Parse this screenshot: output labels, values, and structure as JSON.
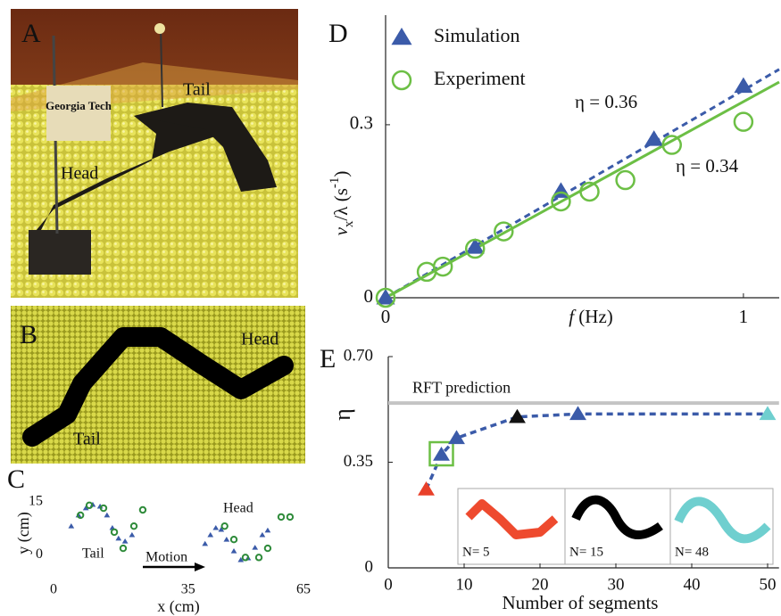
{
  "panels": {
    "A": {
      "label": "A",
      "texts": [
        "Georgia Tech",
        "Tail",
        "Head"
      ]
    },
    "B": {
      "label": "B",
      "texts": [
        "Head",
        "Tail"
      ]
    },
    "C": {
      "label": "C"
    },
    "D": {
      "label": "D"
    },
    "E": {
      "label": "E",
      "insets": [
        "N= 5",
        "N= 15",
        "N= 48"
      ]
    }
  },
  "chart_data": [
    {
      "type": "scatter",
      "xlabel": "x (cm)",
      "ylabel": "y (cm)",
      "xlim": [
        0,
        65
      ],
      "ylim": [
        -4,
        17
      ],
      "xticks": [
        0,
        35,
        65
      ],
      "yticks": [
        0,
        15
      ],
      "axes": false,
      "annotations": [
        "Tail",
        "Head",
        "Motion"
      ],
      "series": [
        {
          "marker": "triangle",
          "color": "#3b5ba9",
          "x": [
            4.6,
            6.5,
            8.4,
            10.2,
            12.1,
            13.9,
            15.3,
            16.9,
            18.6,
            20.4,
            39.4,
            40.8,
            42.2,
            43.6,
            45.0,
            46.9,
            48.7,
            50.6,
            52.4,
            54.3,
            55.7
          ],
          "values": [
            8.1,
            11.2,
            13.2,
            14.2,
            13.7,
            11.2,
            7.6,
            4.6,
            3.8,
            5.6,
            3.1,
            5.6,
            7.6,
            7.1,
            4.3,
            1.0,
            -1.5,
            -1.0,
            2.0,
            5.6,
            6.9
          ]
        },
        {
          "marker": "circle",
          "color": "#2e8b3a",
          "x": [
            7.0,
            9.3,
            13.0,
            15.8,
            18.1,
            20.9,
            23.2,
            44.5,
            46.9,
            49.9,
            53.4,
            55.7,
            59.2,
            61.5
          ],
          "values": [
            11.2,
            14.0,
            13.2,
            6.4,
            1.8,
            8.1,
            12.7,
            8.1,
            4.3,
            -0.8,
            -0.8,
            1.8,
            10.7,
            10.7
          ]
        }
      ]
    },
    {
      "type": "scatter",
      "xlabel_parts": [
        "f",
        " (Hz)"
      ],
      "ylabel_parts": [
        "v",
        "x",
        "/λ (s",
        "-1",
        ")"
      ],
      "xlim": [
        0,
        1.1
      ],
      "ylim": [
        0,
        0.49
      ],
      "xticks": [
        0,
        1
      ],
      "yticks": [
        0,
        0.3
      ],
      "axes": true,
      "annotations": [
        "η = 0.36",
        "η = 0.34"
      ],
      "series": [
        {
          "marker": "line",
          "dash": true,
          "color": "#3b5ba9",
          "x": [
            0,
            1.1
          ],
          "values": [
            0,
            0.396
          ]
        },
        {
          "marker": "line",
          "dash": false,
          "color": "#6cbf45",
          "x": [
            0,
            1.1
          ],
          "values": [
            0,
            0.374
          ]
        },
        {
          "name": "Simulation",
          "marker": "triangle",
          "color": "#3b5ba9",
          "x": [
            0,
            0.25,
            0.49,
            0.75,
            1.0
          ],
          "values": [
            0,
            0.088,
            0.185,
            0.275,
            0.367
          ]
        },
        {
          "name": "Experiment",
          "marker": "circle",
          "color": "#6cbf45",
          "x": [
            0,
            0.115,
            0.16,
            0.25,
            0.33,
            0.49,
            0.57,
            0.67,
            0.8,
            1.0
          ],
          "values": [
            0,
            0.045,
            0.054,
            0.085,
            0.115,
            0.167,
            0.184,
            0.204,
            0.265,
            0.305
          ]
        }
      ]
    },
    {
      "type": "scatter",
      "xlabel": "Number of segments",
      "ylabel": "η",
      "xlim": [
        0,
        51.5
      ],
      "ylim": [
        0,
        0.7
      ],
      "xticks": [
        0,
        10,
        20,
        30,
        40,
        50
      ],
      "yticks": [
        0,
        0.35,
        {
          "value": 0.7,
          "label": "0.70"
        }
      ],
      "axes": true,
      "hlines": [
        {
          "value": 0.546,
          "label": "RFT prediction",
          "color": "#c4c4c4"
        }
      ],
      "series": [
        {
          "marker": "triangle",
          "connect": "dashed",
          "color": "#3b5ba9",
          "colors": [
            "#e8402a",
            "#3b5ba9",
            "#3b5ba9",
            "#111111",
            "#3b5ba9",
            "#6fcfcf"
          ],
          "highlight": 1,
          "highlight_color": "#6cbf45",
          "x": [
            5,
            7,
            9,
            17,
            25,
            50
          ],
          "values": [
            0.26,
            0.375,
            0.43,
            0.5,
            0.51,
            0.51
          ]
        }
      ]
    }
  ]
}
